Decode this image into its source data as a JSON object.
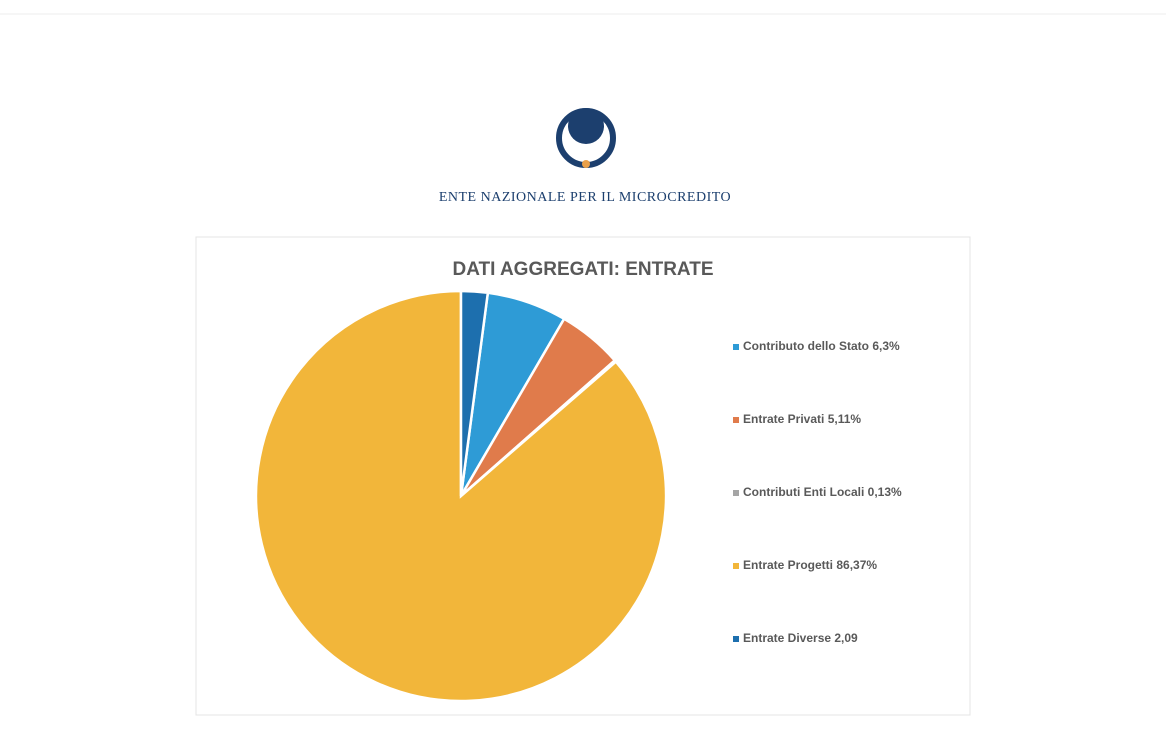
{
  "header": {
    "org": "ENTE NAZIONALE PER IL MICROCREDITO"
  },
  "chart_data": {
    "type": "pie",
    "title": "DATI AGGREGATI: ENTRATE",
    "categories": [
      "Contributo dello Stato 6,3%",
      "Entrate Privati 5,11%",
      "Contributi Enti Locali 0,13%",
      "Entrate Progetti 86,37%",
      "Entrate Diverse 2,09"
    ],
    "values": [
      6.3,
      5.11,
      0.13,
      86.37,
      2.09
    ],
    "colors": [
      "#2e9bd6",
      "#e07b4b",
      "#a5a5a5",
      "#f2b63a",
      "#1d6fae"
    ],
    "legend": "right"
  }
}
